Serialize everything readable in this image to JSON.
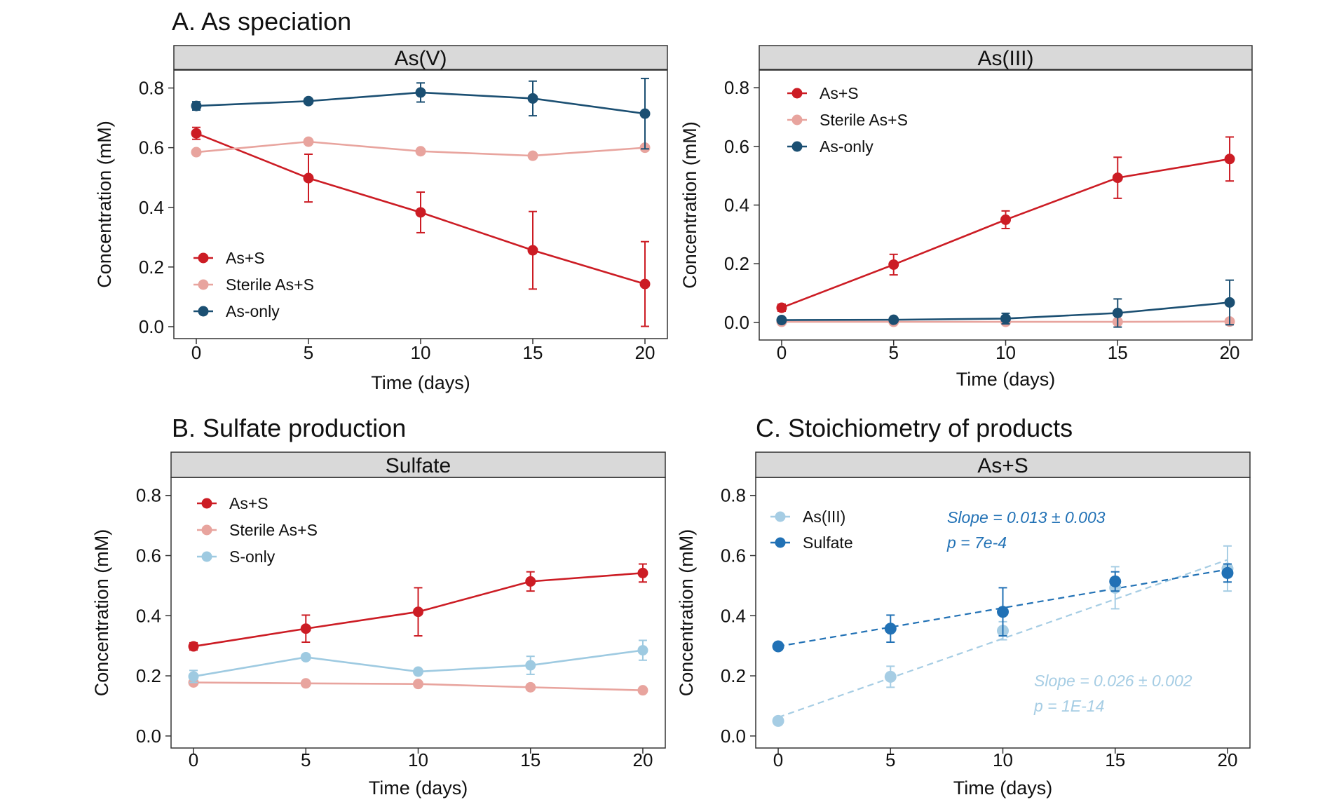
{
  "figure": {
    "section_titles": {
      "A": "A. As speciation",
      "B": "B. Sulfate production",
      "C": "C. Stoichiometry of products"
    }
  },
  "colors": {
    "as_s": "#cc1c24",
    "sterile": "#e8a49e",
    "as_only": "#1b4f72",
    "s_only": "#9ecae1",
    "asiii_light": "#a6cde4",
    "sulfate_dark": "#2171b5",
    "strip_fill": "#d9d9d9"
  },
  "chart_data": [
    {
      "id": "asv",
      "type": "line",
      "strip": "As(V)",
      "xlabel": "Time (days)",
      "ylabel": "Concentration (mM)",
      "xlim": [
        -1,
        21
      ],
      "ylim": [
        -0.04,
        0.86
      ],
      "xticks": [
        0,
        5,
        10,
        15,
        20
      ],
      "yticks": [
        0.0,
        0.2,
        0.4,
        0.6,
        0.8
      ],
      "grid": false,
      "legend_position": "bottom-left",
      "x": [
        0,
        5,
        10,
        15,
        20
      ],
      "series": [
        {
          "name": "As+S",
          "color": "#cc1c24",
          "values": [
            0.648,
            0.498,
            0.383,
            0.256,
            0.143
          ],
          "err": [
            0.02,
            0.08,
            0.068,
            0.13,
            0.142
          ]
        },
        {
          "name": "Sterile As+S",
          "color": "#e8a49e",
          "values": [
            0.585,
            0.62,
            0.588,
            0.573,
            0.6
          ],
          "err": [
            0,
            0,
            0,
            0,
            0
          ]
        },
        {
          "name": "As-only",
          "color": "#1b4f72",
          "values": [
            0.74,
            0.756,
            0.785,
            0.765,
            0.714
          ],
          "err": [
            0.014,
            0.008,
            0.032,
            0.058,
            0.118
          ]
        }
      ]
    },
    {
      "id": "asiii",
      "type": "line",
      "strip": "As(III)",
      "xlabel": "Time (days)",
      "ylabel": "Concentration (mM)",
      "xlim": [
        -1,
        21
      ],
      "ylim": [
        -0.06,
        0.86
      ],
      "xticks": [
        0,
        5,
        10,
        15,
        20
      ],
      "yticks": [
        0.0,
        0.2,
        0.4,
        0.6,
        0.8
      ],
      "grid": false,
      "legend_position": "top-left",
      "x": [
        0,
        5,
        10,
        15,
        20
      ],
      "series": [
        {
          "name": "As+S",
          "color": "#cc1c24",
          "values": [
            0.05,
            0.197,
            0.35,
            0.493,
            0.557
          ],
          "err": [
            0.012,
            0.035,
            0.03,
            0.07,
            0.075
          ]
        },
        {
          "name": "Sterile As+S",
          "color": "#e8a49e",
          "values": [
            0.002,
            0.002,
            0.002,
            0.002,
            0.003
          ],
          "err": [
            0,
            0,
            0,
            0,
            0
          ]
        },
        {
          "name": "As-only",
          "color": "#1b4f72",
          "values": [
            0.008,
            0.009,
            0.013,
            0.032,
            0.068
          ],
          "err": [
            0.008,
            0.006,
            0.018,
            0.048,
            0.076
          ]
        }
      ]
    },
    {
      "id": "sulfate",
      "type": "line",
      "strip": "Sulfate",
      "xlabel": "Time (days)",
      "ylabel": "Concentration (mM)",
      "xlim": [
        -1,
        21
      ],
      "ylim": [
        -0.04,
        0.86
      ],
      "xticks": [
        0,
        5,
        10,
        15,
        20
      ],
      "yticks": [
        0.0,
        0.2,
        0.4,
        0.6,
        0.8
      ],
      "grid": false,
      "legend_position": "top-left",
      "x": [
        0,
        5,
        10,
        15,
        20
      ],
      "series": [
        {
          "name": "As+S",
          "color": "#cc1c24",
          "values": [
            0.298,
            0.357,
            0.413,
            0.514,
            0.542
          ],
          "err": [
            0.012,
            0.045,
            0.08,
            0.032,
            0.03
          ]
        },
        {
          "name": "Sterile As+S",
          "color": "#e8a49e",
          "values": [
            0.178,
            0.175,
            0.173,
            0.162,
            0.152
          ],
          "err": [
            0,
            0,
            0,
            0,
            0
          ]
        },
        {
          "name": "S-only",
          "color": "#9ecae1",
          "values": [
            0.198,
            0.262,
            0.214,
            0.235,
            0.285
          ],
          "err": [
            0.02,
            0,
            0,
            0.03,
            0.033
          ]
        }
      ]
    },
    {
      "id": "stoich",
      "type": "scatter",
      "strip": "As+S",
      "xlabel": "Time (days)",
      "ylabel": "Concentration (mM)",
      "xlim": [
        -1,
        21
      ],
      "ylim": [
        -0.04,
        0.86
      ],
      "xticks": [
        0,
        5,
        10,
        15,
        20
      ],
      "yticks": [
        0.0,
        0.2,
        0.4,
        0.6,
        0.8
      ],
      "grid": false,
      "legend_position": "top-left",
      "x": [
        0,
        5,
        10,
        15,
        20
      ],
      "series": [
        {
          "name": "As(III)",
          "color": "#a6cde4",
          "values": [
            0.05,
            0.197,
            0.35,
            0.493,
            0.557
          ],
          "err": [
            0.008,
            0.035,
            0.03,
            0.07,
            0.075
          ],
          "fit": {
            "intercept": 0.062,
            "slope": 0.0262
          }
        },
        {
          "name": "Sulfate",
          "color": "#2171b5",
          "values": [
            0.298,
            0.357,
            0.413,
            0.514,
            0.542
          ],
          "err": [
            0.01,
            0.045,
            0.08,
            0.032,
            0.03
          ],
          "fit": {
            "intercept": 0.298,
            "slope": 0.0128
          }
        }
      ],
      "annotations": [
        {
          "line1": "Slope  = 0.013 ± 0.003",
          "line2": "p = 7e-4",
          "color": "#2171b5"
        },
        {
          "line1": "Slope  = 0.026 ± 0.002",
          "line2": "p = 1E-14",
          "color": "#a6cde4"
        }
      ]
    }
  ]
}
